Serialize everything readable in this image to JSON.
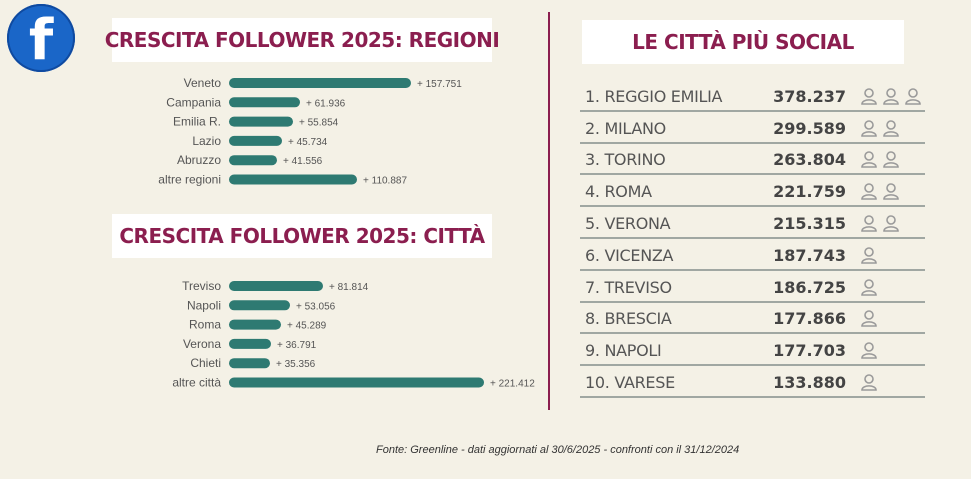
{
  "logo": {
    "glyph": "f",
    "icon": "facebook-icon"
  },
  "colors": {
    "bar": "#2e7a72",
    "title": "#8b1e4f",
    "divider": "#8b1e4f",
    "person": "#9a9a9a"
  },
  "chart_data": [
    {
      "type": "bar",
      "orientation": "horizontal",
      "title": "CRESCITA FOLLOWER 2025: REGIONI",
      "categories": [
        "Veneto",
        "Campania",
        "Emilia R.",
        "Lazio",
        "Abruzzo",
        "altre regioni"
      ],
      "values": [
        157751,
        61936,
        55854,
        45734,
        41556,
        110887
      ],
      "value_labels": [
        "+ 157.751",
        "+ 61.936",
        "+ 55.854",
        "+ 45.734",
        "+ 41.556",
        "+ 110.887"
      ]
    },
    {
      "type": "bar",
      "orientation": "horizontal",
      "title": "CRESCITA FOLLOWER 2025: CITTÀ",
      "categories": [
        "Treviso",
        "Napoli",
        "Roma",
        "Verona",
        "Chieti",
        "altre città"
      ],
      "values": [
        81814,
        53056,
        45289,
        36791,
        35356,
        221412
      ],
      "value_labels": [
        "+ 81.814",
        "+ 53.056",
        "+ 45.289",
        "+ 36.791",
        "+ 35.356",
        "+ 221.412"
      ]
    },
    {
      "type": "table",
      "title": "LE CITTÀ PIÙ SOCIAL",
      "rows": [
        {
          "name": "1. REGGIO EMILIA",
          "value": "378.237",
          "icons": 3
        },
        {
          "name": "2. MILANO",
          "value": "299.589",
          "icons": 2
        },
        {
          "name": "3. TORINO",
          "value": "263.804",
          "icons": 2
        },
        {
          "name": "4. ROMA",
          "value": "221.759",
          "icons": 2
        },
        {
          "name": "5. VERONA",
          "value": "215.315",
          "icons": 2
        },
        {
          "name": "6. VICENZA",
          "value": "187.743",
          "icons": 1
        },
        {
          "name": "7. TREVISO",
          "value": "186.725",
          "icons": 1
        },
        {
          "name": "8. BRESCIA",
          "value": "177.866",
          "icons": 1
        },
        {
          "name": "9. NAPOLI",
          "value": "177.703",
          "icons": 1
        },
        {
          "name": "10. VARESE",
          "value": "133.880",
          "icons": 1
        }
      ]
    }
  ],
  "footnote": "Fonte: Greenline - dati aggiornati al 30/6/2025 - confronti con il 31/12/2024"
}
